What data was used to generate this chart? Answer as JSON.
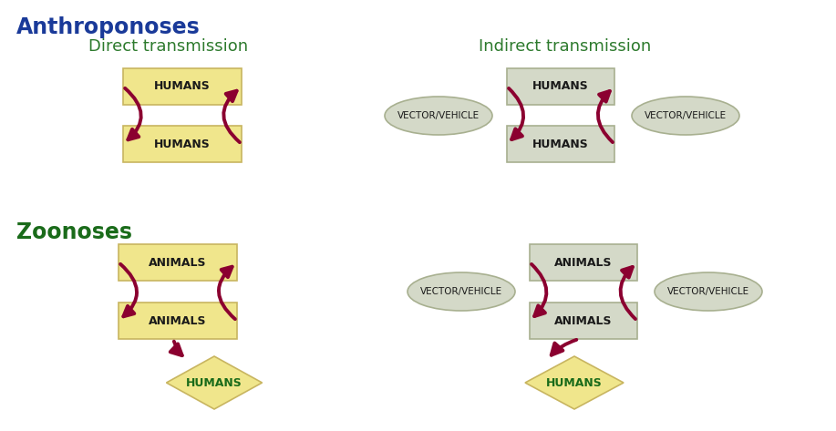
{
  "bg_color": "#ffffff",
  "title_anthroponoses": "Anthroponoses",
  "title_zoonoses": "Zoonoses",
  "label_direct": "Direct transmission",
  "label_indirect": "Indirect transmission",
  "color_title_anthro": "#1a3a99",
  "color_title_zoo": "#1a6b1a",
  "color_subtitle": "#2d7a2d",
  "color_arrow": "#8b0030",
  "color_rect_yellow": "#f0e68c",
  "color_rect_yellow_border": "#c8b560",
  "color_ellipse_fill": "#d4d9c8",
  "color_ellipse_border": "#a8b090",
  "color_rect_gray": "#d4d9c8",
  "color_rect_gray_border": "#a8b090",
  "color_text_dark": "#1a1a1a",
  "color_diamond_text": "#1a6b1a",
  "font_size_title": 17,
  "font_size_subtitle": 13,
  "font_size_box": 9,
  "font_size_ellipse": 7.5
}
